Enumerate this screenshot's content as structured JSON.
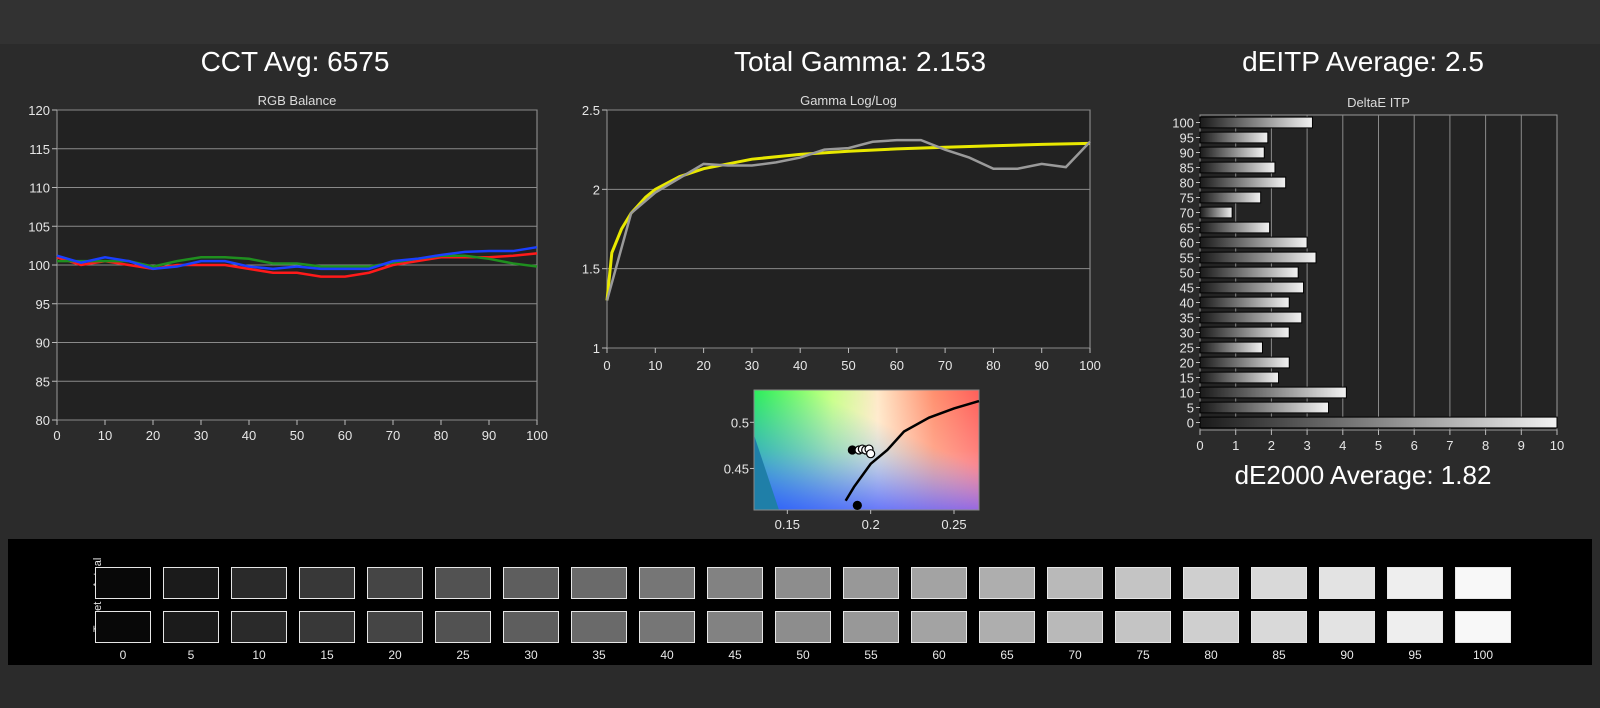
{
  "headlines": {
    "cct": "CCT Avg: 6575",
    "gamma": "Total Gamma: 2.153",
    "deitp": "dEITP Average: 2.5",
    "de2000": "dE2000 Average: 1.82"
  },
  "chart_data": [
    {
      "type": "line",
      "title": "RGB Balance",
      "xlim": [
        0,
        100
      ],
      "ylim": [
        80,
        120
      ],
      "x_ticks": [
        0,
        10,
        20,
        30,
        40,
        50,
        60,
        70,
        80,
        90,
        100
      ],
      "y_ticks": [
        80,
        85,
        90,
        95,
        100,
        105,
        110,
        115,
        120
      ],
      "grid": true,
      "x": [
        0,
        5,
        10,
        15,
        20,
        25,
        30,
        35,
        40,
        45,
        50,
        55,
        60,
        65,
        70,
        75,
        80,
        85,
        90,
        95,
        100
      ],
      "series": [
        {
          "color": "#ff1a1a",
          "values": [
            101,
            100,
            100.5,
            100,
            99.5,
            100,
            100,
            100,
            99.5,
            99,
            99,
            98.5,
            98.5,
            99,
            100,
            100.5,
            101,
            101,
            101,
            101.2,
            101.5
          ]
        },
        {
          "color": "#1f8f1f",
          "values": [
            100.5,
            100.5,
            100.5,
            100.5,
            99.8,
            100.5,
            101,
            101,
            100.8,
            100.2,
            100.2,
            99.8,
            99.8,
            99.8,
            100.3,
            100.8,
            101.2,
            101.2,
            100.8,
            100.2,
            99.8
          ]
        },
        {
          "color": "#1a3fff",
          "values": [
            101.2,
            100.3,
            101,
            100.5,
            99.5,
            99.8,
            100.5,
            100.5,
            99.8,
            99.5,
            99.8,
            99.5,
            99.5,
            99.5,
            100.5,
            100.8,
            101.3,
            101.7,
            101.8,
            101.8,
            102.3
          ]
        }
      ]
    },
    {
      "type": "line",
      "title": "Gamma Log/Log",
      "xlim": [
        0,
        100
      ],
      "ylim": [
        1,
        2.5
      ],
      "x_ticks": [
        0,
        10,
        20,
        30,
        40,
        50,
        60,
        70,
        80,
        90,
        100
      ],
      "y_ticks": [
        1,
        1.5,
        2,
        2.5
      ],
      "y_tick_labels": [
        "1",
        "1.5",
        "2",
        "2.5"
      ],
      "grid": true,
      "series": [
        {
          "color": "#e8e800",
          "x": [
            0,
            1,
            3,
            5,
            8,
            10,
            15,
            20,
            30,
            40,
            50,
            60,
            70,
            80,
            90,
            100
          ],
          "values": [
            1.3,
            1.6,
            1.75,
            1.85,
            1.95,
            2.0,
            2.08,
            2.13,
            2.19,
            2.22,
            2.24,
            2.255,
            2.265,
            2.275,
            2.283,
            2.29
          ]
        },
        {
          "color": "#9a9a9a",
          "x": [
            0,
            5,
            10,
            15,
            20,
            25,
            30,
            35,
            40,
            45,
            50,
            55,
            60,
            65,
            70,
            75,
            80,
            85,
            90,
            95,
            100
          ],
          "values": [
            1.3,
            1.85,
            1.98,
            2.07,
            2.16,
            2.15,
            2.15,
            2.17,
            2.2,
            2.25,
            2.26,
            2.3,
            2.31,
            2.31,
            2.25,
            2.2,
            2.13,
            2.13,
            2.16,
            2.14,
            2.3
          ]
        }
      ]
    },
    {
      "type": "scatter",
      "title": "",
      "xlim": [
        0.13,
        0.265
      ],
      "ylim": [
        0.405,
        0.535
      ],
      "x_ticks": [
        0.15,
        0.2,
        0.25
      ],
      "x_tick_labels": [
        "0.15",
        "0.2",
        "0.25"
      ],
      "y_ticks": [
        0.45,
        0.5
      ],
      "y_tick_labels": [
        "0.45",
        "0.5"
      ],
      "locus": {
        "x": [
          0.185,
          0.19,
          0.2,
          0.21,
          0.22,
          0.235,
          0.25,
          0.265
        ],
        "y": [
          0.415,
          0.43,
          0.455,
          0.47,
          0.49,
          0.505,
          0.515,
          0.523
        ]
      },
      "points": [
        {
          "x": 0.189,
          "y": 0.47,
          "fill": "#000000"
        },
        {
          "x": 0.193,
          "y": 0.47,
          "fill": "#ffffff"
        },
        {
          "x": 0.195,
          "y": 0.471,
          "fill": "#ffffff"
        },
        {
          "x": 0.197,
          "y": 0.47,
          "fill": "#ffffff"
        },
        {
          "x": 0.199,
          "y": 0.471,
          "fill": "#ffffff"
        },
        {
          "x": 0.2,
          "y": 0.466,
          "fill": "#ffffff"
        },
        {
          "x": 0.192,
          "y": 0.41,
          "fill": "#000000"
        }
      ]
    },
    {
      "type": "bar",
      "orientation": "horizontal",
      "title": "DeltaE ITP",
      "xlim": [
        0,
        10
      ],
      "x_ticks": [
        0,
        1,
        2,
        3,
        4,
        5,
        6,
        7,
        8,
        9,
        10
      ],
      "categories": [
        "100",
        "95",
        "90",
        "85",
        "80",
        "75",
        "70",
        "65",
        "60",
        "55",
        "50",
        "45",
        "40",
        "35",
        "30",
        "25",
        "20",
        "15",
        "10",
        "5",
        "0"
      ],
      "values": [
        3.15,
        1.9,
        1.8,
        2.1,
        2.4,
        1.7,
        0.9,
        1.95,
        3.0,
        3.25,
        2.75,
        2.9,
        2.5,
        2.85,
        2.5,
        1.75,
        2.5,
        2.2,
        4.1,
        3.6,
        10
      ]
    }
  ],
  "patches": {
    "row_labels": {
      "actual": "Actual",
      "target": "Target"
    },
    "labels": [
      "0",
      "5",
      "10",
      "15",
      "20",
      "25",
      "30",
      "35",
      "40",
      "45",
      "50",
      "55",
      "60",
      "65",
      "70",
      "75",
      "80",
      "85",
      "90",
      "95",
      "100"
    ]
  }
}
